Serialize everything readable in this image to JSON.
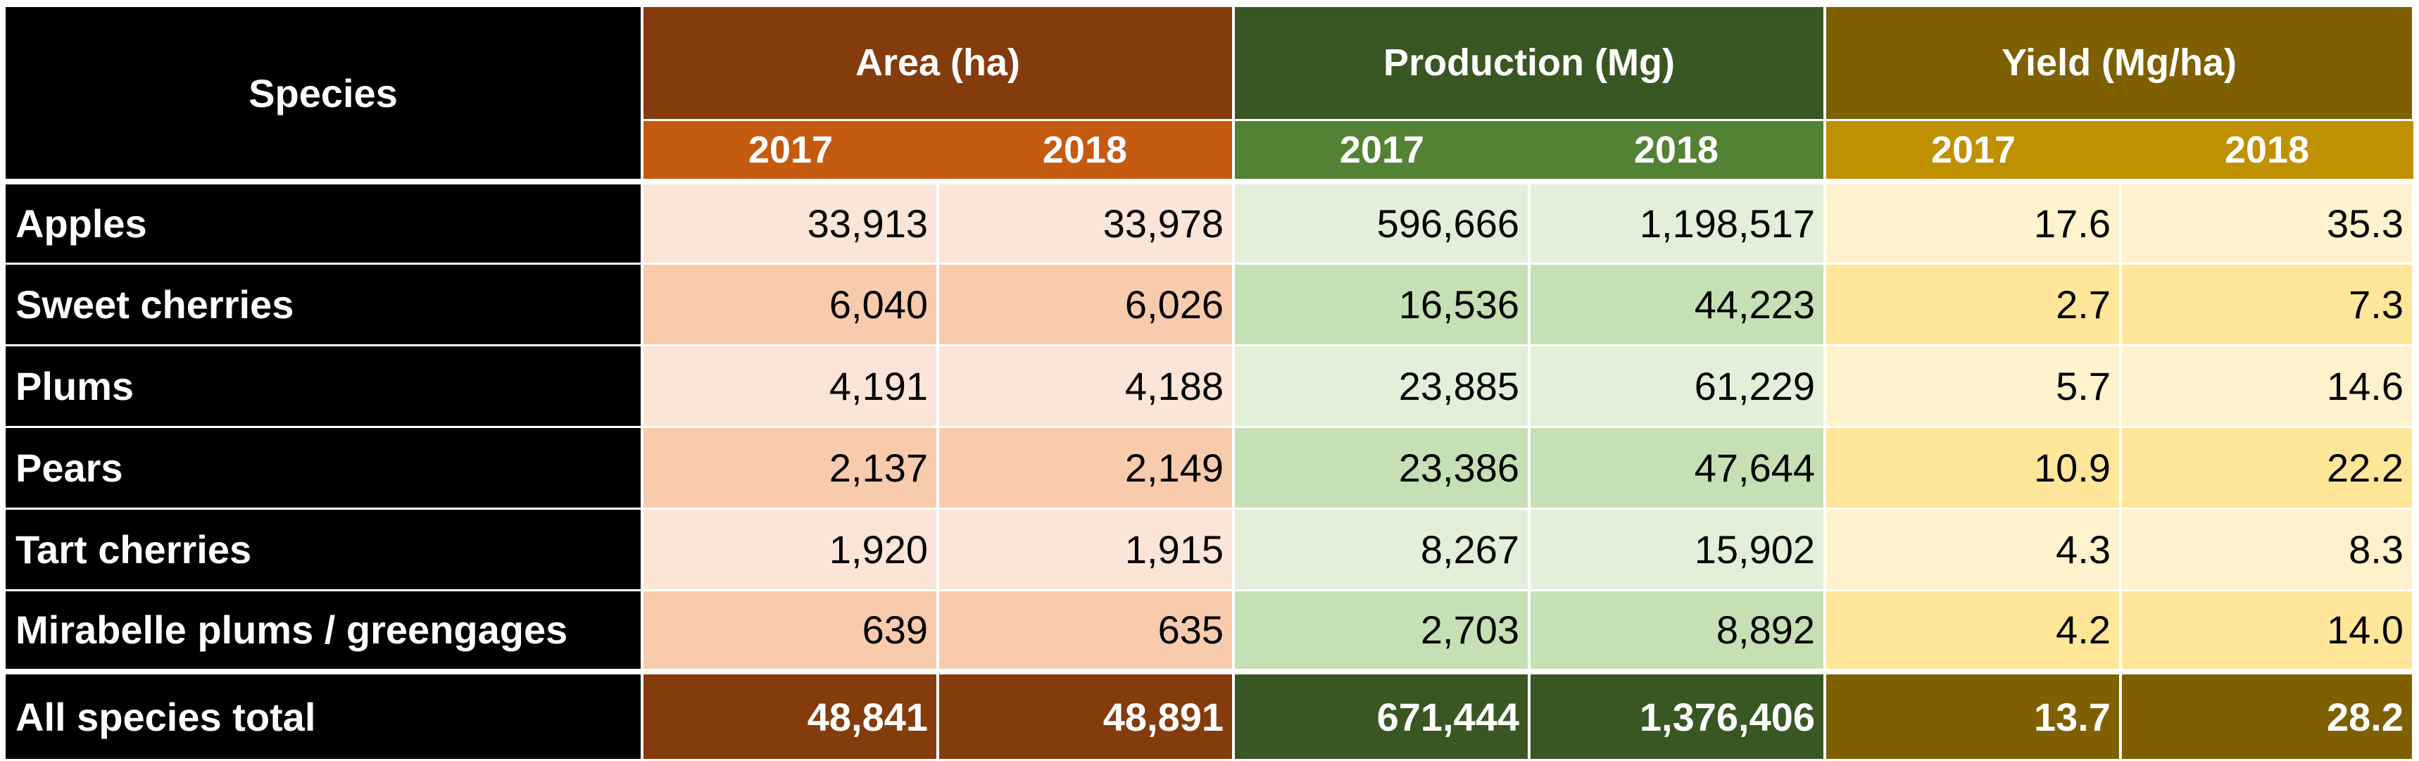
{
  "header": {
    "species_label": "Species",
    "groups": [
      "Area (ha)",
      "Production (Mg)",
      "Yield (Mg/ha)"
    ],
    "years": [
      "2017",
      "2018",
      "2017",
      "2018",
      "2017",
      "2018"
    ]
  },
  "rows": [
    {
      "species": "Apples",
      "values": [
        "33,913",
        "33,978",
        "596,666",
        "1,198,517",
        "17.6",
        "35.3"
      ]
    },
    {
      "species": "Sweet cherries",
      "values": [
        "6,040",
        "6,026",
        "16,536",
        "44,223",
        "2.7",
        "7.3"
      ]
    },
    {
      "species": "Plums",
      "values": [
        "4,191",
        "4,188",
        "23,885",
        "61,229",
        "5.7",
        "14.6"
      ]
    },
    {
      "species": "Pears",
      "values": [
        "2,137",
        "2,149",
        "23,386",
        "47,644",
        "10.9",
        "22.2"
      ]
    },
    {
      "species": "Tart cherries",
      "values": [
        "1,920",
        "1,915",
        "8,267",
        "15,902",
        "4.3",
        "8.3"
      ]
    },
    {
      "species": "Mirabelle plums / greengages",
      "values": [
        "639",
        "635",
        "2,703",
        "8,892",
        "4.2",
        "14.0"
      ]
    }
  ],
  "total": {
    "species": "All species total",
    "values": [
      "48,841",
      "48,891",
      "671,444",
      "1,376,406",
      "13.7",
      "28.2"
    ]
  },
  "colors": {
    "area_header": "#843c0c",
    "area_year": "#c55a11",
    "production_header": "#385723",
    "production_year": "#548235",
    "yield_header": "#7f6000",
    "yield_year": "#bf9000"
  }
}
